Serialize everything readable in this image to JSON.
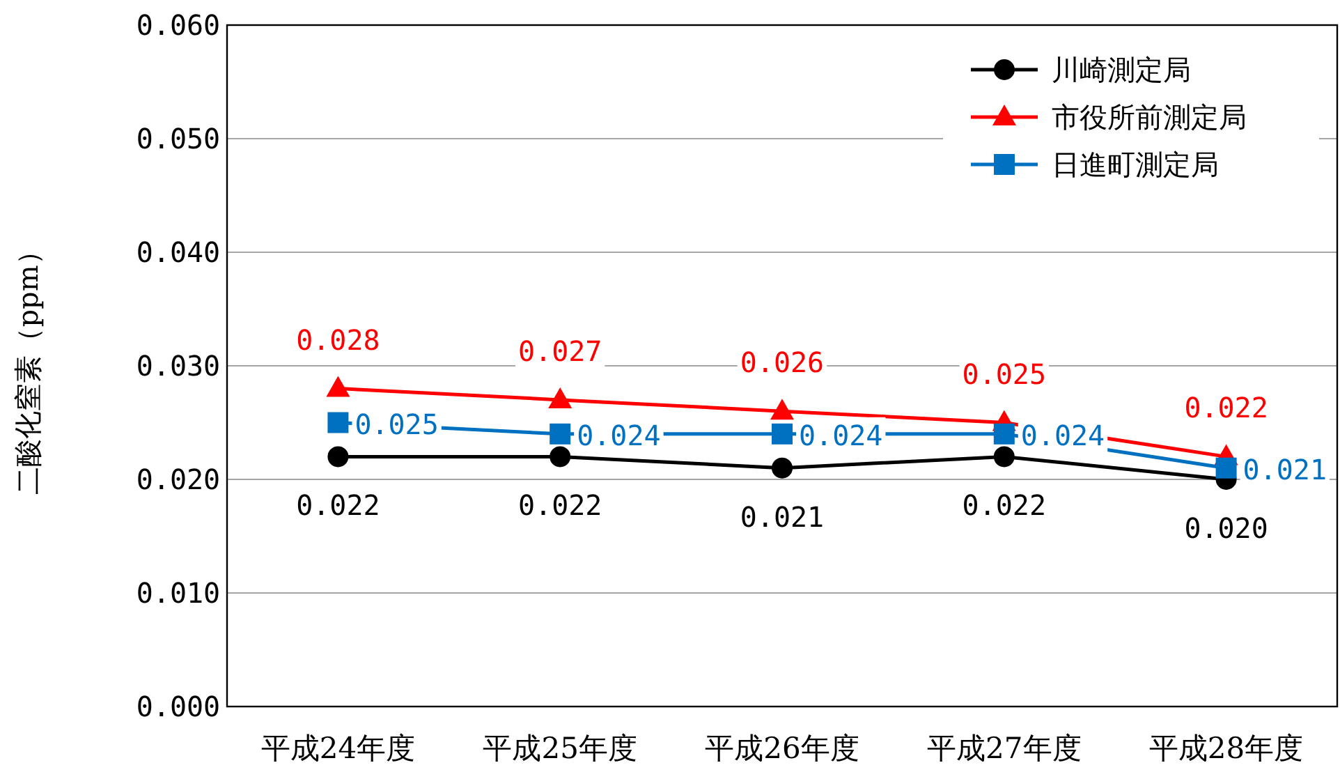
{
  "chart_data": {
    "type": "line",
    "ylabel": "二酸化窒素（ppm）",
    "categories": [
      "平成24年度",
      "平成25年度",
      "平成26年度",
      "平成27年度",
      "平成28年度"
    ],
    "series": [
      {
        "name": "川崎測定局",
        "color": "#000000",
        "marker": "circle",
        "values": [
          0.022,
          0.022,
          0.021,
          0.022,
          0.02
        ],
        "value_labels": [
          "0.022",
          "0.022",
          "0.021",
          "0.022",
          "0.020"
        ]
      },
      {
        "name": "市役所前測定局",
        "color": "#ff0000",
        "marker": "triangle",
        "values": [
          0.028,
          0.027,
          0.026,
          0.025,
          0.022
        ]
      },
      {
        "name": "日進町測定局",
        "color": "#0070c0",
        "marker": "square",
        "values": [
          0.025,
          0.024,
          0.024,
          0.024,
          0.021
        ]
      }
    ],
    "ylim": [
      0,
      0.06
    ],
    "yticks": [
      {
        "value": 0,
        "label": "0.000"
      },
      {
        "value": 0.01,
        "label": "0.010"
      },
      {
        "value": 0.02,
        "label": "0.020"
      },
      {
        "value": 0.03,
        "label": "0.030"
      },
      {
        "value": 0.04,
        "label": "0.040"
      },
      {
        "value": 0.05,
        "label": "0.050"
      },
      {
        "value": 0.06,
        "label": "0.060"
      }
    ],
    "grid": "y",
    "legend": "top right",
    "data_labels": true,
    "line_style": "solid"
  }
}
